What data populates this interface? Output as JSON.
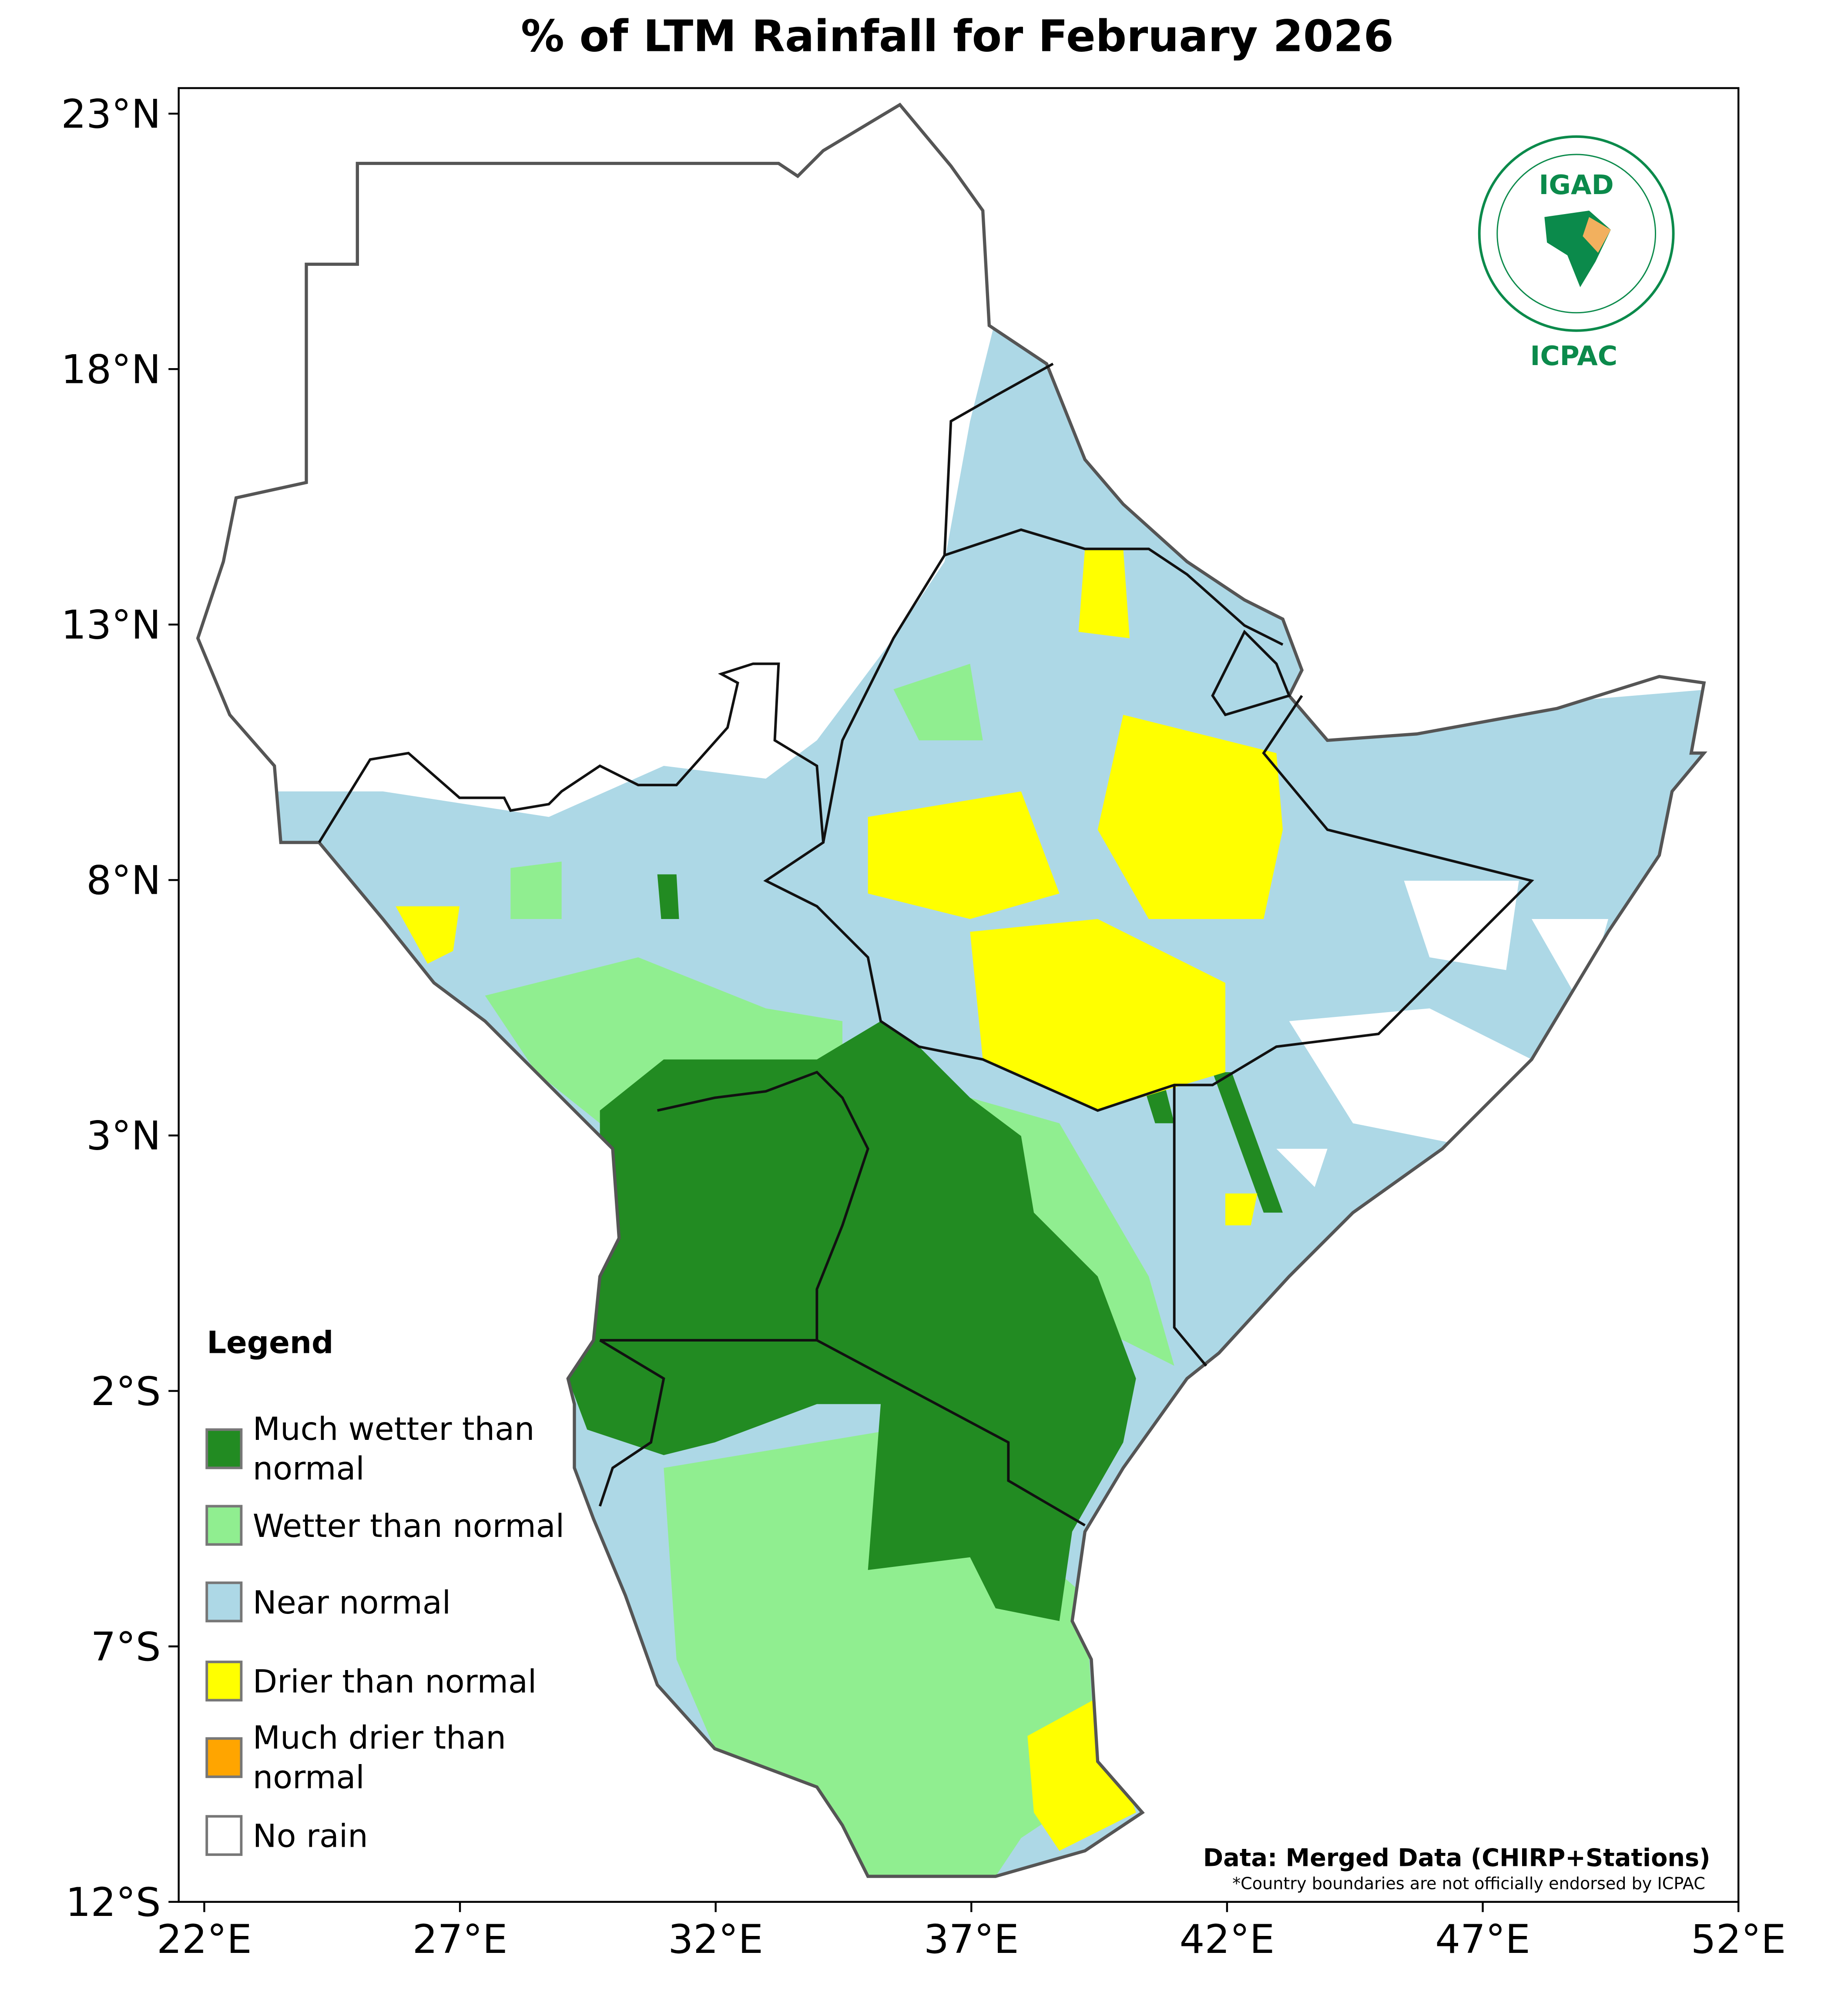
{
  "chart_data": {
    "type": "map",
    "title": "% of LTM Rainfall for February 2026",
    "xlim": [
      21.5,
      52
    ],
    "ylim": [
      -12,
      23.5
    ],
    "xticks": [
      {
        "value": 22,
        "label": "22°E"
      },
      {
        "value": 27,
        "label": "27°E"
      },
      {
        "value": 32,
        "label": "32°E"
      },
      {
        "value": 37,
        "label": "37°E"
      },
      {
        "value": 42,
        "label": "42°E"
      },
      {
        "value": 47,
        "label": "47°E"
      },
      {
        "value": 52,
        "label": "52°E"
      }
    ],
    "yticks": [
      {
        "value": 23,
        "label": "23°N"
      },
      {
        "value": 18,
        "label": "18°N"
      },
      {
        "value": 13,
        "label": "13°N"
      },
      {
        "value": 8,
        "label": "8°N"
      },
      {
        "value": 3,
        "label": "3°N"
      },
      {
        "value": -2,
        "label": "2°S"
      },
      {
        "value": -7,
        "label": "7°S"
      },
      {
        "value": -12,
        "label": "12°S"
      }
    ],
    "legend": {
      "title": "Legend",
      "items": [
        {
          "name": "Much wetter than normal",
          "color": "#228b22"
        },
        {
          "name": "Wetter than normal",
          "color": "#90ee90"
        },
        {
          "name": "Near normal",
          "color": "#add8e6"
        },
        {
          "name": "Drier than normal",
          "color": "#ffff00"
        },
        {
          "name": "Much drier than normal",
          "color": "#ffa500"
        },
        {
          "name": "No rain",
          "color": "#ffffff"
        }
      ]
    },
    "source": "Data: Merged Data (CHIRP+Stations)",
    "note": "*Country boundaries are not officially endorsed by ICPAC",
    "logo": {
      "top": "IGAD",
      "bottom": "ICPAC"
    }
  }
}
